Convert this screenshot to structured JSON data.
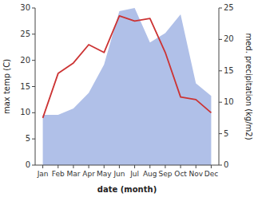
{
  "chart_data": {
    "type": "line",
    "categories": [
      "Jan",
      "Feb",
      "Mar",
      "Apr",
      "May",
      "Jun",
      "Jul",
      "Aug",
      "Sep",
      "Oct",
      "Nov",
      "Dec"
    ],
    "xlabel": "date (month)",
    "ylabel": "max temp (C)",
    "y2label": "med. precipitation (kg/m2)",
    "ylim": [
      0,
      30
    ],
    "yticks": [
      0,
      5,
      10,
      15,
      20,
      25,
      30
    ],
    "y2lim": [
      0,
      25
    ],
    "y2ticks": [
      0,
      5,
      10,
      15,
      20,
      25
    ],
    "grid": false,
    "series": [
      {
        "type": "area",
        "axis": "y2",
        "color": "#b0c0e8",
        "values": [
          8.0,
          8.0,
          9.0,
          11.5,
          16.0,
          24.5,
          25.0,
          19.5,
          21.0,
          24.0,
          13.0,
          11.0
        ]
      },
      {
        "type": "line",
        "color": "#cc3333",
        "values": [
          9.0,
          17.5,
          19.5,
          23.0,
          21.5,
          28.5,
          27.5,
          28.0,
          21.5,
          13.0,
          12.5,
          10.0
        ]
      }
    ]
  }
}
